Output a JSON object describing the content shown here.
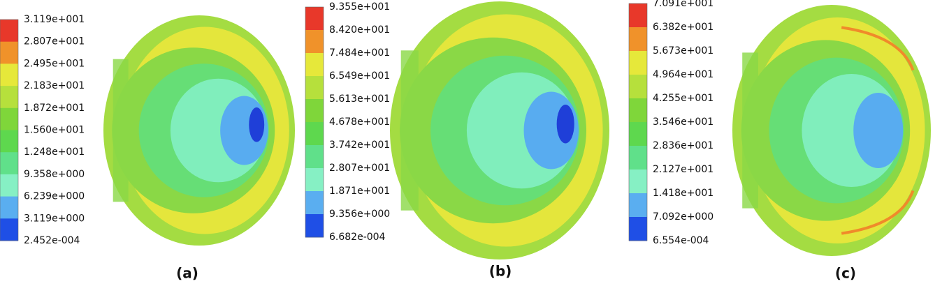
{
  "panels": [
    {
      "label": "(a)",
      "colorbar": [
        "3.119e+001",
        "2.807e+001",
        "2.495e+001",
        "2.183e+001",
        "1.872e+001",
        "1.560e+001",
        "1.248e+001",
        "9.358e+000",
        "6.239e+000",
        "3.119e+000",
        "2.452e-004"
      ]
    },
    {
      "label": "(b)",
      "colorbar": [
        "9.355e+001",
        "8.420e+001",
        "7.484e+001",
        "6.549e+001",
        "5.613e+001",
        "4.678e+001",
        "3.742e+001",
        "2.807e+001",
        "1.871e+001",
        "9.356e+000",
        "6.682e-004"
      ]
    },
    {
      "label": "(c)",
      "colorbar": [
        "7.091e+001",
        "6.382e+001",
        "5.673e+001",
        "4.964e+001",
        "4.255e+001",
        "3.546e+001",
        "2.836e+001",
        "2.127e+001",
        "1.418e+001",
        "7.092e+000",
        "6.554e-004"
      ]
    }
  ]
}
